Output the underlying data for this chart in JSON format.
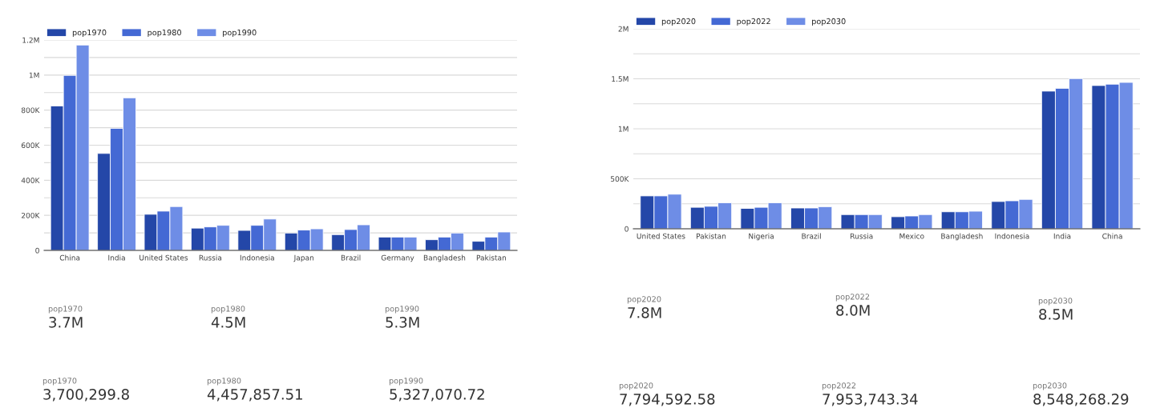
{
  "chart_data": [
    {
      "type": "bar",
      "categories": [
        "China",
        "India",
        "United States",
        "Russia",
        "Indonesia",
        "Japan",
        "Brazil",
        "Germany",
        "Bangladesh",
        "Pakistan"
      ],
      "series": [
        {
          "name": "pop1970",
          "color": "#2447a8",
          "values": [
            824000,
            553000,
            206000,
            127000,
            114000,
            99000,
            90000,
            76000,
            61000,
            52000
          ]
        },
        {
          "name": "pop1980",
          "color": "#4469d4",
          "values": [
            998000,
            696000,
            224000,
            134000,
            143000,
            116000,
            119000,
            76000,
            76000,
            76000
          ]
        },
        {
          "name": "pop1990",
          "color": "#6e8de6",
          "values": [
            1171000,
            870000,
            250000,
            143000,
            179000,
            123000,
            146000,
            76000,
            99000,
            105000
          ]
        }
      ],
      "ylim": [
        0,
        1200000
      ],
      "yticks": [
        0,
        {
          "value": 100000,
          "label": null
        },
        {
          "value": 200000,
          "label": "200K"
        },
        {
          "value": 300000,
          "label": null
        },
        {
          "value": 400000,
          "label": "400K"
        },
        {
          "value": 500000,
          "label": null
        },
        {
          "value": 600000,
          "label": "600K"
        },
        {
          "value": 700000,
          "label": null
        },
        {
          "value": 800000,
          "label": "800K"
        },
        {
          "value": 900000,
          "label": null
        },
        {
          "value": 1000000,
          "label": "1M"
        },
        {
          "value": 1100000,
          "label": null
        },
        {
          "value": 1200000,
          "label": "1.2M"
        }
      ],
      "grid": "y",
      "legend": "top left"
    },
    {
      "type": "other",
      "title": "pop1970",
      "annotations": [
        "3.7M"
      ]
    },
    {
      "type": "other",
      "title": "pop1980",
      "annotations": [
        "4.5M"
      ]
    },
    {
      "type": "other",
      "title": "pop1990",
      "annotations": [
        "5.3M"
      ]
    },
    {
      "type": "other",
      "title": "pop1970",
      "annotations": [
        "3,700,299.8"
      ]
    },
    {
      "type": "other",
      "title": "pop1980",
      "annotations": [
        "4,457,857.51"
      ]
    },
    {
      "type": "other",
      "title": "pop1990",
      "annotations": [
        "5,327,070.72"
      ]
    },
    {
      "type": "bar",
      "categories": [
        "United States",
        "Pakistan",
        "Nigeria",
        "Brazil",
        "Russia",
        "Mexico",
        "Bangladesh",
        "Indonesia",
        "India",
        "China"
      ],
      "series": [
        {
          "name": "pop2020",
          "color": "#2447a8",
          "values": [
            329000,
            215000,
            204000,
            208000,
            142000,
            121000,
            170000,
            273000,
            1377000,
            1433000
          ]
        },
        {
          "name": "pop2022",
          "color": "#4469d4",
          "values": [
            329000,
            225000,
            215000,
            208000,
            142000,
            128000,
            170000,
            280000,
            1405000,
            1446000
          ]
        },
        {
          "name": "pop2030",
          "color": "#6e8de6",
          "values": [
            346000,
            260000,
            260000,
            221000,
            142000,
            142000,
            176000,
            294000,
            1502000,
            1464000
          ]
        }
      ],
      "ylim": [
        0,
        2000000
      ],
      "yticks": [
        0,
        {
          "value": 250000,
          "label": null
        },
        {
          "value": 500000,
          "label": "500K"
        },
        {
          "value": 750000,
          "label": null
        },
        {
          "value": 1000000,
          "label": "1M"
        },
        {
          "value": 1250000,
          "label": null
        },
        {
          "value": 1500000,
          "label": "1.5M"
        },
        {
          "value": 1750000,
          "label": null
        },
        {
          "value": 2000000,
          "label": "2M"
        }
      ],
      "grid": "y",
      "legend": "top left"
    },
    {
      "type": "other",
      "title": "pop2020",
      "annotations": [
        "7.8M"
      ]
    },
    {
      "type": "other",
      "title": "pop2022",
      "annotations": [
        "8.0M"
      ]
    },
    {
      "type": "other",
      "title": "pop2030",
      "annotations": [
        "8.5M"
      ]
    },
    {
      "type": "other",
      "title": "pop2020",
      "annotations": [
        "7,794,592.58"
      ]
    },
    {
      "type": "other",
      "title": "pop2022",
      "annotations": [
        "7,953,743.34"
      ]
    },
    {
      "type": "other",
      "title": "pop2030",
      "annotations": [
        "8,548,268.29"
      ]
    }
  ]
}
